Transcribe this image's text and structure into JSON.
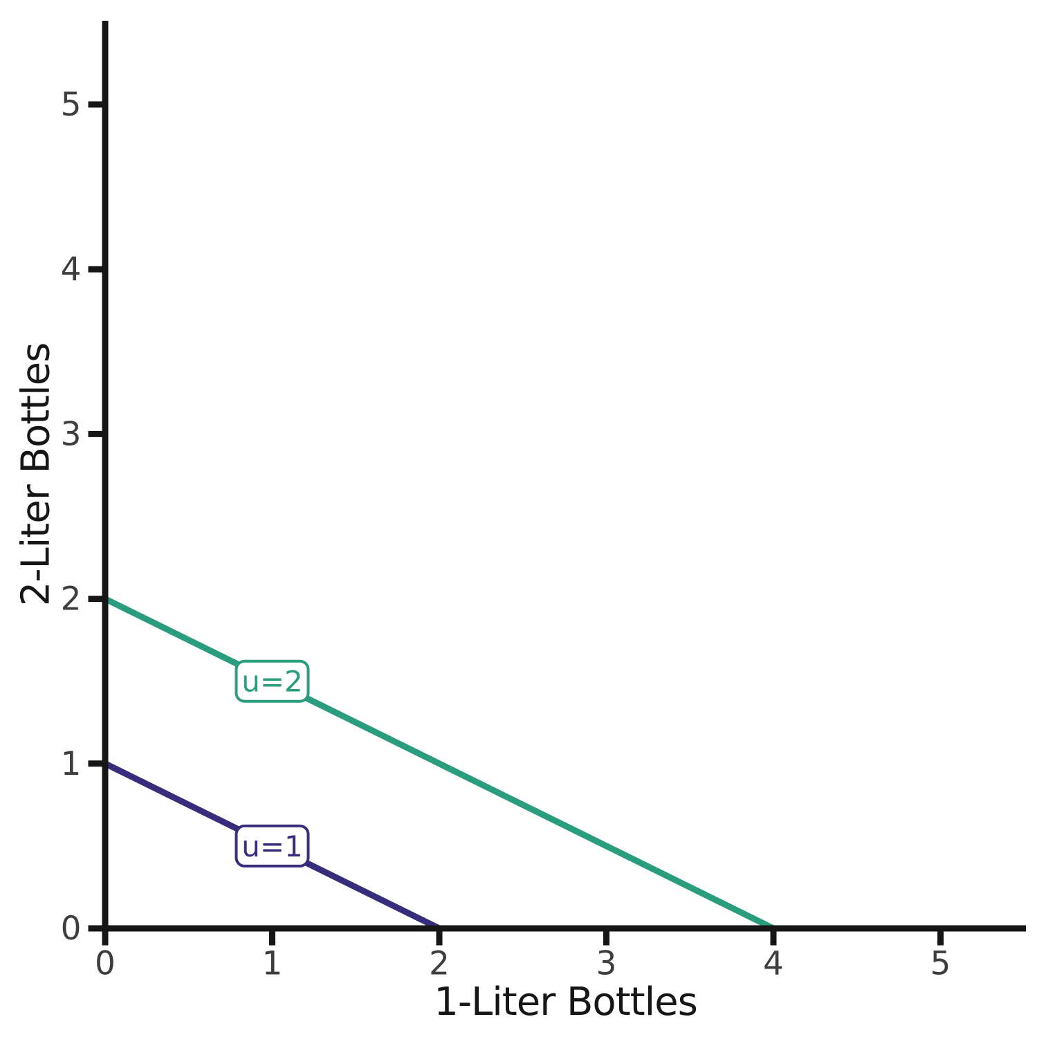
{
  "chart_data": {
    "type": "line",
    "title": "",
    "xlabel": "1-Liter Bottles",
    "ylabel": "2-Liter Bottles",
    "xlim": [
      0,
      5.5
    ],
    "ylim": [
      0,
      5.5
    ],
    "xticks": [
      "0",
      "1",
      "2",
      "3",
      "4",
      "5"
    ],
    "yticks": [
      "0",
      "1",
      "2",
      "3",
      "4",
      "5"
    ],
    "grid": false,
    "legend_position": "none",
    "axis_color": "#161616",
    "tick_label_color": "#3e3e3e",
    "background_color": "#ffffff",
    "series": [
      {
        "name": "u=2",
        "color": "#2a9d7f",
        "x": [
          0,
          4
        ],
        "y": [
          2,
          0
        ],
        "annotation": {
          "text": "u=2",
          "x": 1,
          "y": 1.5
        }
      },
      {
        "name": "u=1",
        "color": "#372d7c",
        "x": [
          0,
          2
        ],
        "y": [
          1,
          0
        ],
        "annotation": {
          "text": "u=1",
          "x": 1,
          "y": 0.5
        }
      }
    ]
  }
}
